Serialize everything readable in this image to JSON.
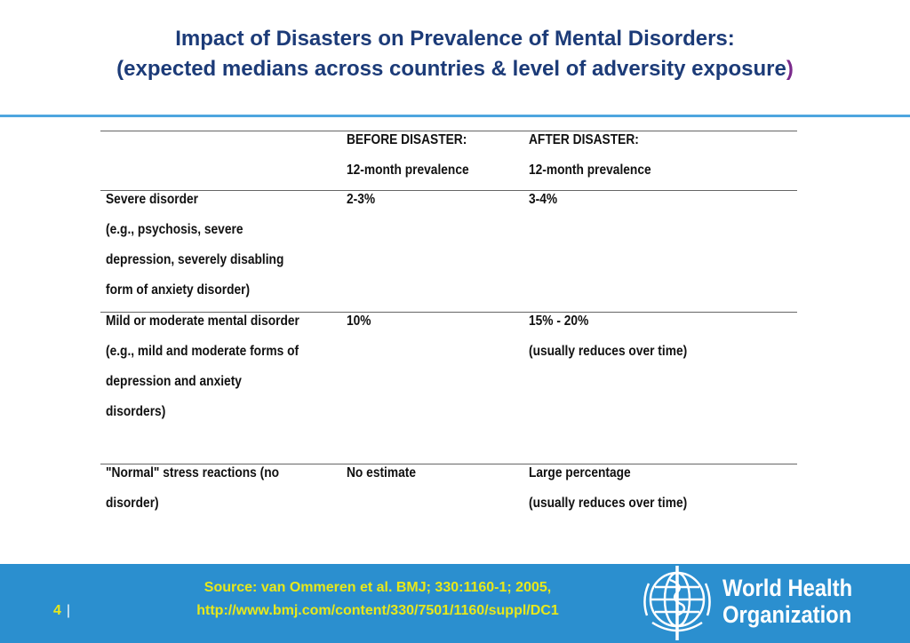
{
  "title": [
    "Impact of Disasters on Prevalence of Mental Disorders:",
    "(expected medians across countries & level of adversity exposure)"
  ],
  "table": {
    "header": [
      [],
      [
        "BEFORE DISASTER:",
        "12-month prevalence"
      ],
      [
        "AFTER DISASTER:",
        "12-month  prevalence"
      ]
    ],
    "rows": [
      [
        [
          "Severe disorder",
          "(e.g., psychosis, severe",
          "depression, severely disabling",
          "form of anxiety disorder)"
        ],
        [
          "2-3%"
        ],
        [
          "3-4%"
        ]
      ],
      [
        [
          "Mild or moderate mental disorder",
          "(e.g., mild and moderate forms of",
          "depression and anxiety",
          "disorders)"
        ],
        [
          "10%"
        ],
        [
          "15% - 20%",
          "(usually reduces over time)"
        ]
      ],
      [
        [
          "\"Normal\" stress reactions (no",
          "disorder)"
        ],
        [
          "No estimate"
        ],
        [
          "Large percentage",
          "(usually reduces over time)"
        ]
      ]
    ]
  },
  "footer": {
    "source": [
      "Source: van Ommeren et al. BMJ; 330:1160-1; 2005,",
      "http://www.bmj.com/content/330/7501/1160/suppl/DC1"
    ],
    "page_number": "4",
    "logo": [
      "World Health",
      "Organization"
    ]
  }
}
